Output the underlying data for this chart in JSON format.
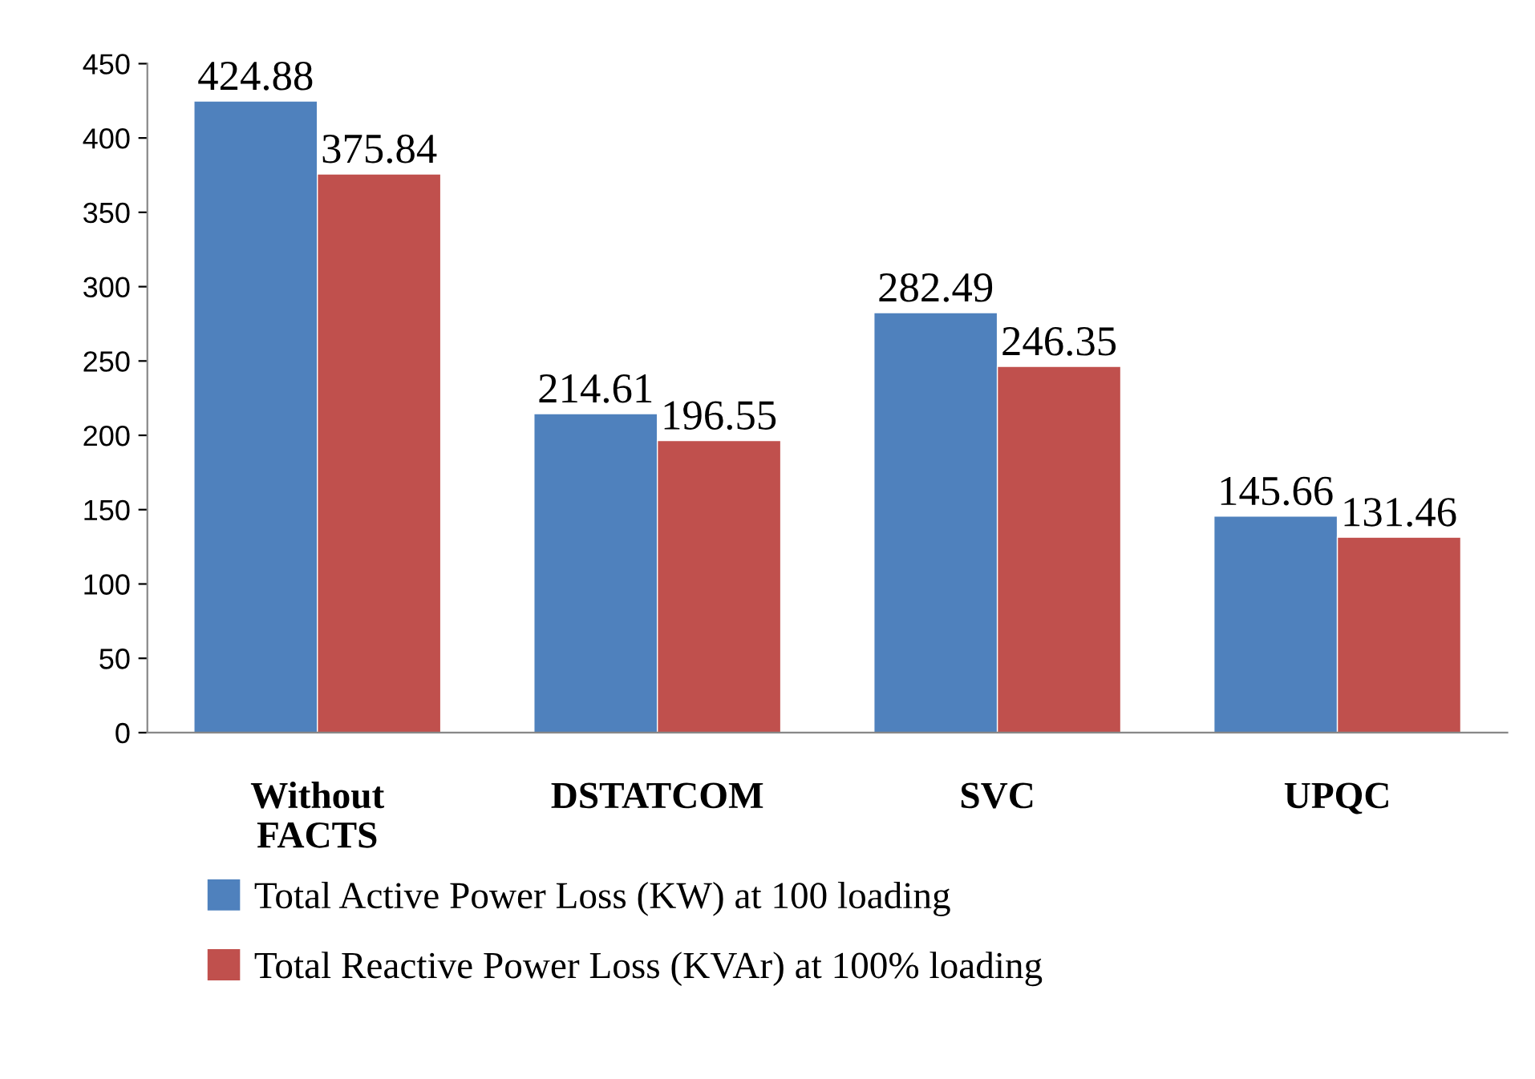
{
  "chart_data": {
    "type": "bar",
    "categories": [
      "Without FACTS",
      "DSTATCOM",
      "SVC",
      "UPQC"
    ],
    "series": [
      {
        "name": "Total Active Power Loss (KW) at 100 loading",
        "color": "#4f81bd",
        "values": [
          424.88,
          214.61,
          282.49,
          145.66
        ]
      },
      {
        "name": "Total Reactive Power Loss (KVAr) at 100% loading",
        "color": "#c0504d",
        "values": [
          375.84,
          196.55,
          246.35,
          131.46
        ]
      }
    ],
    "ylim": [
      0,
      450
    ],
    "yticks": [
      0,
      50,
      100,
      150,
      200,
      250,
      300,
      350,
      400,
      450
    ],
    "data_labels": true,
    "grid": false,
    "legend": "bottom"
  }
}
